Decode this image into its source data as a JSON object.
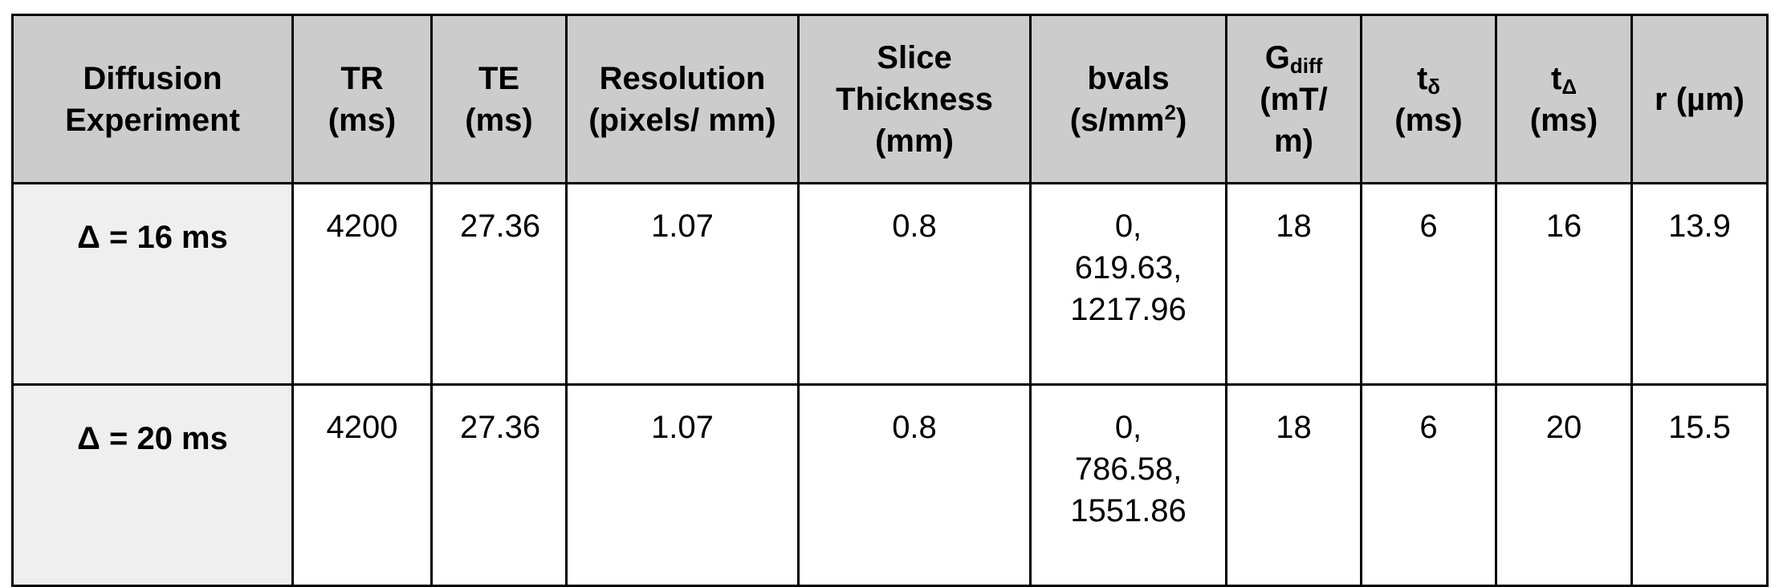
{
  "table": {
    "header": [
      "Diffusion Experiment",
      "TR (ms)",
      "TE (ms)",
      "Resolution (pixels/ mm)",
      "Slice Thickness (mm)",
      {
        "text": "bvals (s/mm",
        "sup": "2",
        "after": ")"
      },
      {
        "text": "G",
        "sub": "diff",
        "after": "(mT/ m)"
      },
      {
        "text": "t",
        "sub": "δ",
        "after": "(ms)"
      },
      {
        "text": "t",
        "sub": "Δ",
        "after": "(ms)"
      },
      "r (µm)"
    ],
    "rows": [
      [
        "Δ = 16 ms",
        "4200",
        "27.36",
        "1.07",
        "0.8",
        "0, 619.63, 1217.96",
        "18",
        "6",
        "16",
        "13.9"
      ],
      [
        "Δ = 20 ms",
        "4200",
        "27.36",
        "1.07",
        "0.8",
        "0, 786.58, 1551.86",
        "18",
        "6",
        "20",
        "15.5"
      ]
    ]
  }
}
